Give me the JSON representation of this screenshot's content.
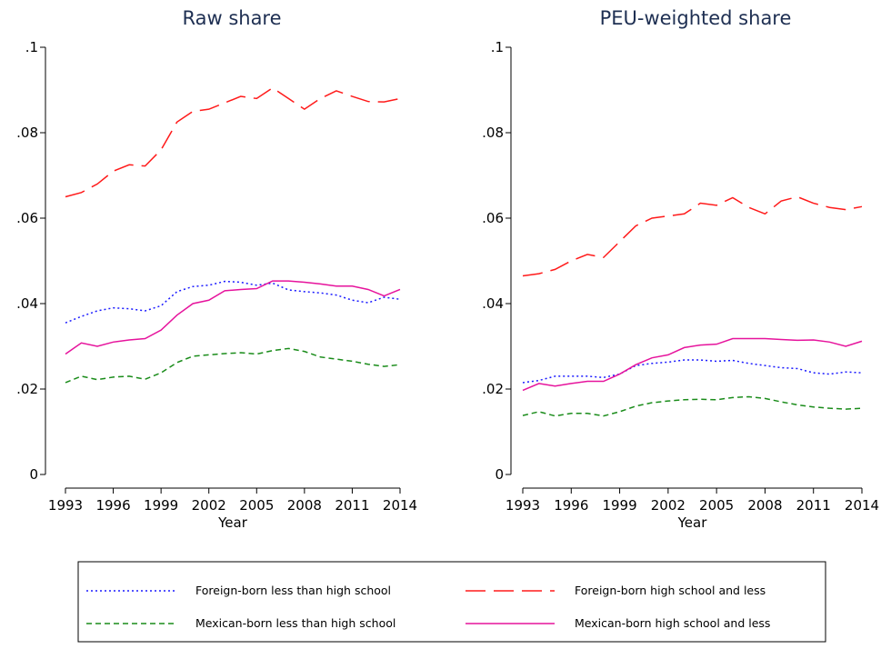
{
  "chart_data": [
    {
      "type": "line",
      "title": "Raw share",
      "x_label": "Year",
      "x": [
        1993,
        1994,
        1995,
        1996,
        1997,
        1998,
        1999,
        2000,
        2001,
        2002,
        2003,
        2004,
        2005,
        2006,
        2007,
        2008,
        2009,
        2010,
        2011,
        2012,
        2013,
        2014
      ],
      "xlim": [
        1993,
        2014
      ],
      "xticks": [
        1993,
        1996,
        1999,
        2002,
        2005,
        2008,
        2011,
        2014
      ],
      "ylim": [
        0,
        0.1
      ],
      "yticks": [
        0,
        {
          "value": 0.02,
          "label": ".02"
        },
        {
          "value": 0.04,
          "label": ".04"
        },
        {
          "value": 0.06,
          "label": ".06"
        },
        {
          "value": 0.08,
          "label": ".08"
        },
        {
          "value": 0.1,
          "label": ".1"
        }
      ],
      "series": [
        {
          "name": "Foreign-born less than high school",
          "color": "#1a1aff",
          "dash": "dot",
          "values": [
            0.0355,
            0.037,
            0.0383,
            0.039,
            0.0388,
            0.0383,
            0.0395,
            0.0428,
            0.044,
            0.0443,
            0.0452,
            0.045,
            0.0443,
            0.0448,
            0.0432,
            0.0428,
            0.0425,
            0.042,
            0.0408,
            0.0402,
            0.0415,
            0.041
          ]
        },
        {
          "name": "Foreign-born high school and less",
          "color": "#ff1a1a",
          "dash": "longdash",
          "values": [
            0.065,
            0.066,
            0.068,
            0.071,
            0.0725,
            0.0722,
            0.076,
            0.0825,
            0.085,
            0.0855,
            0.087,
            0.0885,
            0.088,
            0.0905,
            0.088,
            0.0855,
            0.088,
            0.0898,
            0.0885,
            0.0873,
            0.0872,
            0.088
          ]
        },
        {
          "name": "Mexican-born less than high school",
          "color": "#1a8c1a",
          "dash": "dash",
          "values": [
            0.0215,
            0.023,
            0.0222,
            0.0228,
            0.023,
            0.0223,
            0.0238,
            0.0262,
            0.0277,
            0.028,
            0.0283,
            0.0285,
            0.0282,
            0.029,
            0.0295,
            0.0288,
            0.0275,
            0.027,
            0.0265,
            0.0258,
            0.0253,
            0.0257
          ]
        },
        {
          "name": "Mexican-born high school and less",
          "color": "#e6139c",
          "dash": "solid",
          "values": [
            0.0282,
            0.0308,
            0.03,
            0.031,
            0.0315,
            0.0318,
            0.0338,
            0.0373,
            0.04,
            0.0408,
            0.043,
            0.0433,
            0.0435,
            0.0453,
            0.0453,
            0.045,
            0.0446,
            0.0441,
            0.0441,
            0.0433,
            0.0418,
            0.0433
          ]
        }
      ]
    },
    {
      "type": "line",
      "title": "PEU-weighted share",
      "x_label": "Year",
      "x": [
        1993,
        1994,
        1995,
        1996,
        1997,
        1998,
        1999,
        2000,
        2001,
        2002,
        2003,
        2004,
        2005,
        2006,
        2007,
        2008,
        2009,
        2010,
        2011,
        2012,
        2013,
        2014
      ],
      "xlim": [
        1993,
        2014
      ],
      "xticks": [
        1993,
        1996,
        1999,
        2002,
        2005,
        2008,
        2011,
        2014
      ],
      "ylim": [
        0,
        0.1
      ],
      "yticks": [
        0,
        {
          "value": 0.02,
          "label": ".02"
        },
        {
          "value": 0.04,
          "label": ".04"
        },
        {
          "value": 0.06,
          "label": ".06"
        },
        {
          "value": 0.08,
          "label": ".08"
        },
        {
          "value": 0.1,
          "label": ".1"
        }
      ],
      "series": [
        {
          "color": "#1a1aff",
          "dash": "dot",
          "values": [
            0.0215,
            0.022,
            0.023,
            0.023,
            0.023,
            0.0227,
            0.0235,
            0.0255,
            0.026,
            0.0263,
            0.0268,
            0.0268,
            0.0265,
            0.0267,
            0.026,
            0.0255,
            0.025,
            0.0248,
            0.0238,
            0.0235,
            0.024,
            0.0238
          ]
        },
        {
          "color": "#ff1a1a",
          "dash": "longdash",
          "values": [
            0.0465,
            0.047,
            0.048,
            0.05,
            0.0515,
            0.0508,
            0.0545,
            0.0582,
            0.06,
            0.0605,
            0.061,
            0.0635,
            0.063,
            0.0648,
            0.0625,
            0.061,
            0.064,
            0.065,
            0.0635,
            0.0625,
            0.062,
            0.0627
          ]
        },
        {
          "color": "#1a8c1a",
          "dash": "dash",
          "values": [
            0.0138,
            0.0147,
            0.0137,
            0.0143,
            0.0143,
            0.0137,
            0.0147,
            0.016,
            0.0168,
            0.0172,
            0.0175,
            0.0176,
            0.0175,
            0.018,
            0.0182,
            0.0178,
            0.017,
            0.0163,
            0.0158,
            0.0155,
            0.0153,
            0.0155
          ]
        },
        {
          "color": "#e6139c",
          "dash": "solid",
          "values": [
            0.0197,
            0.0213,
            0.0207,
            0.0213,
            0.0218,
            0.0218,
            0.0235,
            0.0257,
            0.0273,
            0.028,
            0.0297,
            0.0303,
            0.0305,
            0.0318,
            0.0318,
            0.0318,
            0.0316,
            0.0314,
            0.0315,
            0.031,
            0.03,
            0.0312
          ]
        }
      ]
    }
  ]
}
